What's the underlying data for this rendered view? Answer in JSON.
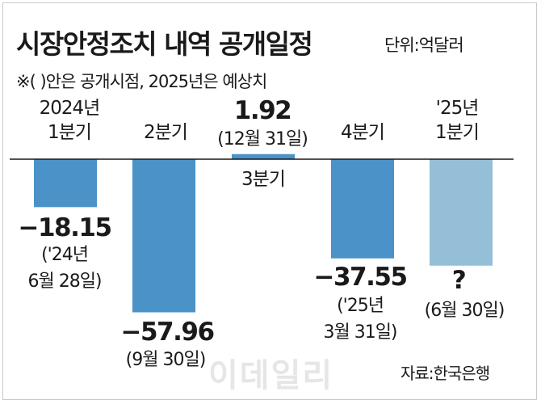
{
  "header": {
    "title": "시장안정조치 내역 공개일정",
    "unit": "단위:억달러",
    "note": "※( )안은 공개시점, 2025년은 예상치"
  },
  "source": "자료:한국은행",
  "watermark": "이데일리",
  "chart_data": {
    "type": "bar",
    "categories": [
      [
        "2024년",
        "1분기"
      ],
      [
        "2분기"
      ],
      [
        "3분기"
      ],
      [
        "4분기"
      ],
      [
        "'25년",
        "1분기"
      ]
    ],
    "values": [
      -18.15,
      -57.96,
      1.92,
      -37.55,
      null
    ],
    "value_labels": [
      "−18.15",
      "−57.96",
      "1.92",
      "−37.55",
      "?"
    ],
    "release_dates": [
      [
        "('24년",
        "6월 28일)"
      ],
      [
        "(9월 30일)"
      ],
      [
        "(12월 31일)"
      ],
      [
        "('25년",
        "3월 31일)"
      ],
      [
        "(6월 30일)"
      ]
    ],
    "colors": [
      "#4a92c7",
      "#4a92c7",
      "#4a92c7",
      "#4a92c7",
      "#95bfd6"
    ],
    "ylim": [
      -60,
      5
    ]
  }
}
